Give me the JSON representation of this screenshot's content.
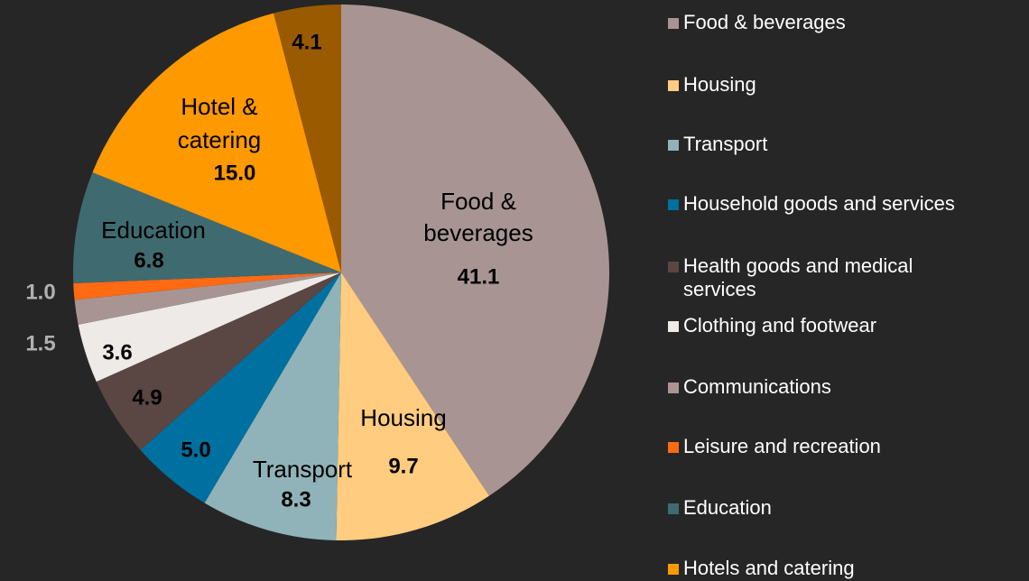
{
  "chart_data": {
    "type": "pie",
    "categories": [
      "Food & beverages",
      "Housing",
      "Transport",
      "Household goods and services",
      "Health goods and medical services",
      "Clothing and footwear",
      "Communications",
      "Leisure and recreation",
      "Education",
      "Hotels and catering",
      null
    ],
    "values": [
      41.1,
      9.7,
      8.3,
      5.0,
      4.9,
      3.6,
      1.5,
      1.0,
      6.8,
      15.0,
      4.1
    ],
    "value_labels": [
      "41.1",
      "9.7",
      "8.3",
      "5.0",
      "4.9",
      "3.6",
      "1.5",
      "1.0",
      "6.8",
      "15.0",
      "4.1"
    ],
    "slice_labels": [
      [
        "Food &",
        "beverages"
      ],
      [
        "Housing"
      ],
      [
        "Transport"
      ],
      null,
      null,
      null,
      null,
      null,
      [
        "Education"
      ],
      [
        "Hotel &",
        "catering"
      ],
      null
    ],
    "colors": [
      "#a89593",
      "#ffcc80",
      "#8fb3b8",
      "#0070a0",
      "#5a4642",
      "#eeeae8",
      "#a89593",
      "#ff6a13",
      "#3f6b70",
      "#ff9900",
      "#9a5a00"
    ],
    "legend": "right"
  }
}
